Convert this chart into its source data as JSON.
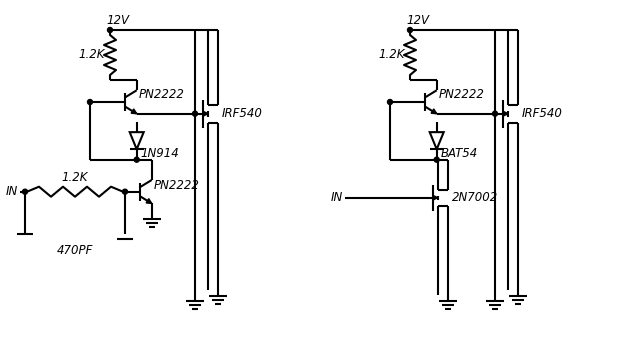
{
  "bg_color": "#ffffff",
  "line_color": "#000000",
  "lw": 1.5,
  "fs": 8.5,
  "circuits": [
    {
      "name": "left",
      "vcc_label": "12V",
      "res1_label": "1.2K",
      "q1_label": "PN2222",
      "diode_label": "1N914",
      "q2_label": "PN2222",
      "res2_label": "1.2K",
      "cap_label": "470PF",
      "in_label": "IN",
      "mosfet_label": "IRF540"
    },
    {
      "name": "right",
      "vcc_label": "12V",
      "res1_label": "1.2K",
      "q1_label": "PN2222",
      "diode_label": "BAT54",
      "q2_label": "2N7002",
      "in_label": "IN",
      "mosfet_label": "IRF540"
    }
  ]
}
